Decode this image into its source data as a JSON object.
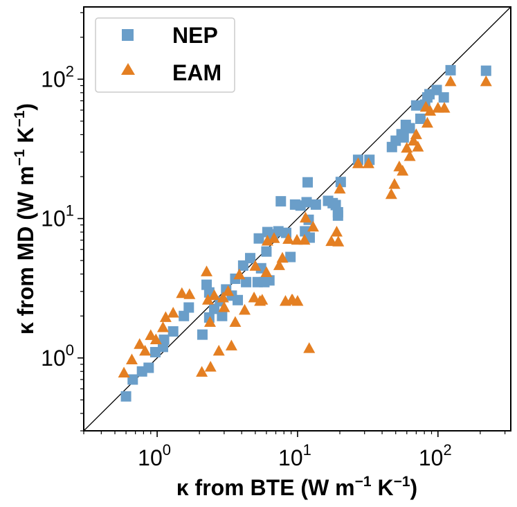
{
  "chart_data": {
    "type": "scatter",
    "xscale": "log",
    "yscale": "log",
    "xlim": [
      0.3,
      330
    ],
    "ylim": [
      0.3,
      330
    ],
    "grid": false,
    "legend_position": "top-left",
    "xlabel": {
      "pre": "κ from BTE (W m",
      "sup1": "−1",
      "mid": " K",
      "sup2": "−1",
      "post": ")"
    },
    "ylabel": {
      "pre": "κ from MD (W m",
      "sup1": "−1",
      "mid": " K",
      "sup2": "−1",
      "post": ")"
    },
    "x_ticks": [
      {
        "value": 1,
        "base": "10",
        "exp": "0"
      },
      {
        "value": 10,
        "base": "10",
        "exp": "1"
      },
      {
        "value": 100,
        "base": "10",
        "exp": "2"
      }
    ],
    "y_ticks": [
      {
        "value": 1,
        "base": "10",
        "exp": "0"
      },
      {
        "value": 10,
        "base": "10",
        "exp": "1"
      },
      {
        "value": 100,
        "base": "10",
        "exp": "2"
      }
    ],
    "reference_line": "y = x",
    "series": [
      {
        "name": "NEP",
        "marker": "square",
        "color": "#6a9ec9",
        "points": [
          [
            0.6,
            0.53
          ],
          [
            0.67,
            0.7
          ],
          [
            0.78,
            0.8
          ],
          [
            0.87,
            0.85
          ],
          [
            0.97,
            1.1
          ],
          [
            1.1,
            1.2
          ],
          [
            1.12,
            1.35
          ],
          [
            1.3,
            1.55
          ],
          [
            1.55,
            2.0
          ],
          [
            1.68,
            2.3
          ],
          [
            2.1,
            1.47
          ],
          [
            2.25,
            3.35
          ],
          [
            2.35,
            2.95
          ],
          [
            2.35,
            1.95
          ],
          [
            2.55,
            2.25
          ],
          [
            2.8,
            2.55
          ],
          [
            2.9,
            2.0
          ],
          [
            3.1,
            3.1
          ],
          [
            3.4,
            2.8
          ],
          [
            3.6,
            3.7
          ],
          [
            3.75,
            2.6
          ],
          [
            4.1,
            4.6
          ],
          [
            4.3,
            3.5
          ],
          [
            4.6,
            5.2
          ],
          [
            5.2,
            3.5
          ],
          [
            5.3,
            7.2
          ],
          [
            5.5,
            4.4
          ],
          [
            5.8,
            3.5
          ],
          [
            6.0,
            5.8
          ],
          [
            6.1,
            8.0
          ],
          [
            6.3,
            3.6
          ],
          [
            6.7,
            7.7
          ],
          [
            7.3,
            8.1
          ],
          [
            7.6,
            13.3
          ],
          [
            8.3,
            7.9
          ],
          [
            8.9,
            5.3
          ],
          [
            9.6,
            12.6
          ],
          [
            10.5,
            12.4
          ],
          [
            11.3,
            8.1
          ],
          [
            11.6,
            13.1
          ],
          [
            11.8,
            18.2
          ],
          [
            12.0,
            9.8
          ],
          [
            12.2,
            7.3
          ],
          [
            13.5,
            12.6
          ],
          [
            16.5,
            13.4
          ],
          [
            17.8,
            12.9
          ],
          [
            18.7,
            12.5
          ],
          [
            19.4,
            11.1
          ],
          [
            19.4,
            10.5
          ],
          [
            20.3,
            18.3
          ],
          [
            27.0,
            26.4
          ],
          [
            32.5,
            26.4
          ],
          [
            47.0,
            32.6
          ],
          [
            50.0,
            36.2
          ],
          [
            55.0,
            40.3
          ],
          [
            57.0,
            38.2
          ],
          [
            59.0,
            47.0
          ],
          [
            63.0,
            44.5
          ],
          [
            70.0,
            64.8
          ],
          [
            75.0,
            52.0
          ],
          [
            81.0,
            65.7
          ],
          [
            84.0,
            74.0
          ],
          [
            87.0,
            78.0
          ],
          [
            98.0,
            83.6
          ],
          [
            110.0,
            74.0
          ],
          [
            123.0,
            116.0
          ],
          [
            220.0,
            115.0
          ]
        ]
      },
      {
        "name": "EAM",
        "marker": "triangle",
        "color": "#e47f22",
        "points": [
          [
            0.58,
            0.78
          ],
          [
            0.66,
            0.97
          ],
          [
            0.75,
            1.25
          ],
          [
            0.82,
            1.12
          ],
          [
            0.9,
            1.45
          ],
          [
            0.98,
            1.35
          ],
          [
            1.1,
            1.65
          ],
          [
            1.15,
            1.95
          ],
          [
            1.3,
            2.1
          ],
          [
            1.5,
            2.9
          ],
          [
            1.7,
            2.85
          ],
          [
            2.08,
            0.79
          ],
          [
            2.25,
            4.15
          ],
          [
            2.3,
            2.6
          ],
          [
            2.38,
            1.8
          ],
          [
            2.4,
            0.86
          ],
          [
            2.55,
            2.8
          ],
          [
            2.75,
            1.12
          ],
          [
            2.95,
            2.7
          ],
          [
            3.0,
            2.3
          ],
          [
            3.2,
            3.0
          ],
          [
            3.38,
            1.22
          ],
          [
            3.6,
            1.8
          ],
          [
            3.85,
            3.95
          ],
          [
            4.2,
            2.2
          ],
          [
            4.9,
            2.7
          ],
          [
            5.0,
            4.55
          ],
          [
            5.4,
            2.55
          ],
          [
            5.6,
            2.6
          ],
          [
            6.0,
            4.1
          ],
          [
            6.1,
            6.9
          ],
          [
            6.8,
            7.2
          ],
          [
            7.4,
            4.6
          ],
          [
            7.8,
            5.2
          ],
          [
            8.2,
            2.55
          ],
          [
            8.6,
            7.1
          ],
          [
            9.1,
            2.6
          ],
          [
            9.2,
            2.6
          ],
          [
            9.9,
            7.0
          ],
          [
            10.0,
            2.55
          ],
          [
            11.2,
            7.0
          ],
          [
            11.4,
            10.1
          ],
          [
            12.1,
            1.17
          ],
          [
            12.9,
            8.7
          ],
          [
            17.4,
            6.85
          ],
          [
            19.0,
            8.0
          ],
          [
            19.5,
            6.8
          ],
          [
            20.0,
            16.3
          ],
          [
            27.0,
            24.8
          ],
          [
            32.0,
            24.8
          ],
          [
            46.5,
            14.9
          ],
          [
            49.0,
            17.6
          ],
          [
            53.0,
            23.5
          ],
          [
            56.0,
            21.9
          ],
          [
            60.0,
            32.0
          ],
          [
            63.0,
            27.9
          ],
          [
            67.0,
            36.0
          ],
          [
            70.0,
            40.0
          ],
          [
            72.0,
            32.6
          ],
          [
            82.0,
            63.0
          ],
          [
            84.0,
            48.4
          ],
          [
            88.0,
            59.0
          ],
          [
            100.0,
            62.0
          ],
          [
            111.0,
            62.0
          ],
          [
            123.0,
            96.0
          ],
          [
            220.0,
            96.0
          ]
        ]
      }
    ]
  }
}
